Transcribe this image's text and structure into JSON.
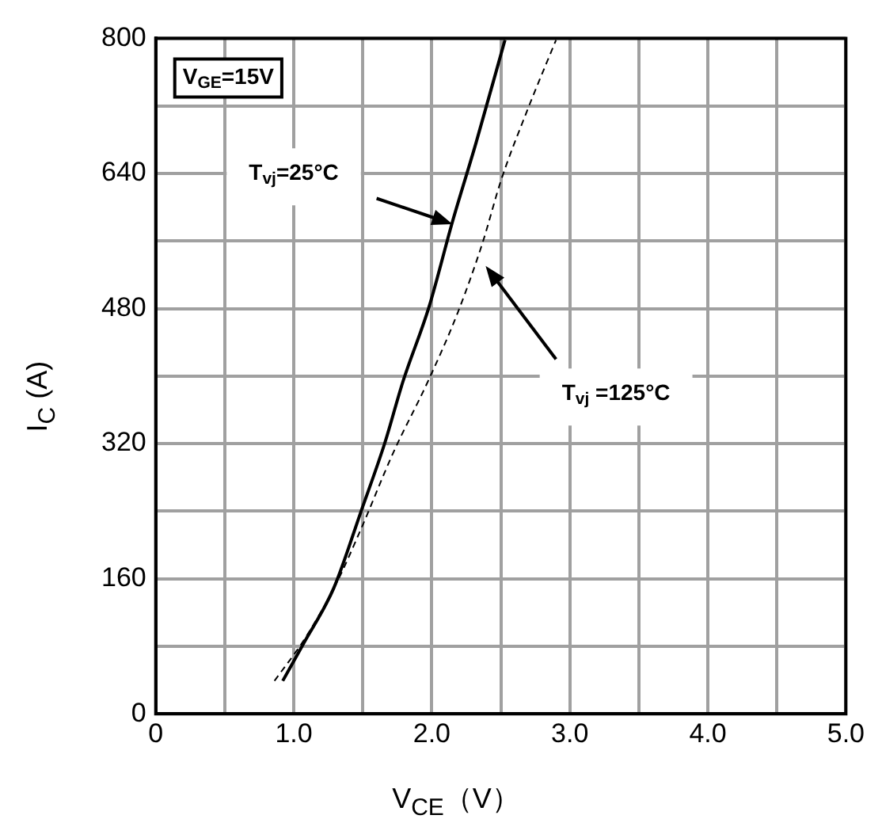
{
  "chart_data": {
    "type": "line",
    "xlabel": "V$_{CE}$（V）",
    "ylabel": "I$_{C}$ (A)",
    "xlim": [
      0,
      5
    ],
    "ylim": [
      0,
      800
    ],
    "xticks": [
      0,
      {
        "value": 0.5,
        "label": null
      },
      {
        "value": 1,
        "label": "1.0"
      },
      {
        "value": 1.5,
        "label": null
      },
      {
        "value": 2,
        "label": "2.0"
      },
      {
        "value": 2.5,
        "label": null
      },
      {
        "value": 3,
        "label": "3.0"
      },
      {
        "value": 3.5,
        "label": null
      },
      {
        "value": 4,
        "label": "4.0"
      },
      {
        "value": 4.5,
        "label": null
      },
      {
        "value": 5,
        "label": "5.0"
      }
    ],
    "yticks": [
      0,
      {
        "value": 80,
        "label": null
      },
      160,
      {
        "value": 240,
        "label": null
      },
      320,
      {
        "value": 400,
        "label": null
      },
      480,
      {
        "value": 560,
        "label": null
      },
      640,
      {
        "value": 720,
        "label": null
      },
      800
    ],
    "grid": true,
    "legend": false,
    "marker": "none",
    "series": [
      {
        "color": "#000000",
        "line_style": "solid",
        "x": [
          0.92,
          1.07,
          1.29,
          1.49,
          1.66,
          1.79,
          1.98,
          2.15,
          2.32,
          2.53
        ],
        "values": [
          39,
          83,
          149,
          241,
          321,
          393,
          482,
          583,
          676,
          798
        ]
      },
      {
        "color": "#000000",
        "line_style": "dashed",
        "x": [
          0.86,
          1.08,
          1.31,
          1.49,
          1.72,
          1.97,
          2.19,
          2.37,
          2.5,
          2.69,
          2.9
        ],
        "values": [
          39,
          89,
          155,
          220,
          309,
          393,
          476,
          559,
          631,
          714,
          798
        ]
      }
    ],
    "annotations": [
      "V$_{GE}$=15V",
      "T$_{vj}$=25°C",
      "T$_{vj}$ =125°C"
    ]
  }
}
